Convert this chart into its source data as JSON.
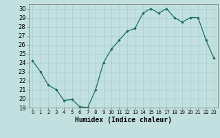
{
  "x": [
    0,
    1,
    2,
    3,
    4,
    5,
    6,
    7,
    8,
    9,
    10,
    11,
    12,
    13,
    14,
    15,
    16,
    17,
    18,
    19,
    20,
    21,
    22,
    23
  ],
  "y": [
    24.2,
    23.0,
    21.5,
    21.0,
    19.8,
    19.9,
    19.1,
    19.0,
    21.0,
    24.0,
    25.5,
    26.5,
    27.5,
    27.8,
    29.5,
    30.0,
    29.5,
    30.0,
    29.0,
    28.5,
    29.0,
    29.0,
    26.5,
    24.5
  ],
  "line_color": "#1a6b5a",
  "marker": "D",
  "marker_size": 1.8,
  "bg_color": "#c2e0e0",
  "grid_color": "#a8cccc",
  "xlabel": "Humidex (Indice chaleur)",
  "xlim": [
    -0.5,
    23.5
  ],
  "ylim": [
    19,
    30.5
  ],
  "yticks": [
    19,
    20,
    21,
    22,
    23,
    24,
    25,
    26,
    27,
    28,
    29,
    30
  ],
  "xtick_labels": [
    "0",
    "1",
    "2",
    "3",
    "4",
    "5",
    "6",
    "7",
    "8",
    "9",
    "10",
    "11",
    "12",
    "13",
    "14",
    "15",
    "16",
    "17",
    "18",
    "19",
    "20",
    "21",
    "22",
    "23"
  ]
}
